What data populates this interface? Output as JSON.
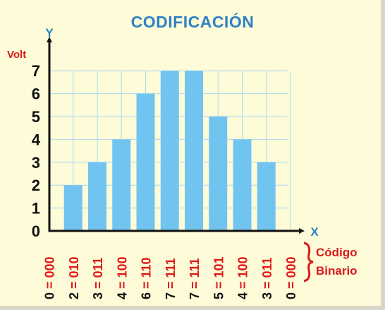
{
  "chart_data": {
    "type": "bar",
    "title": "CODIFICACIÓN",
    "ylabel_top": "Y",
    "unit": "Volt",
    "xlabel": "X",
    "ylim": [
      0,
      7
    ],
    "yticks": [
      "0",
      "1",
      "2",
      "3",
      "4",
      "5",
      "6",
      "7"
    ],
    "categories": [
      "0 = 000",
      "2 = 010",
      "3 = 011",
      "4 = 100",
      "6 = 110",
      "7 = 111",
      "7 = 111",
      "5 = 101",
      "4 = 100",
      "3 = 011",
      "0 = 000"
    ],
    "values": [
      0,
      2,
      3,
      4,
      6,
      7,
      7,
      5,
      4,
      3,
      0
    ],
    "grid": true,
    "brace_label": [
      "Código",
      "Binario"
    ]
  },
  "colors": {
    "background": "#fdfbd8",
    "bar": "#72c4f0",
    "grid": "#aad8ef",
    "title": "#2f81c6",
    "axis": "#111111",
    "code_text": "#e21717",
    "label_red": "#d91a1a"
  }
}
